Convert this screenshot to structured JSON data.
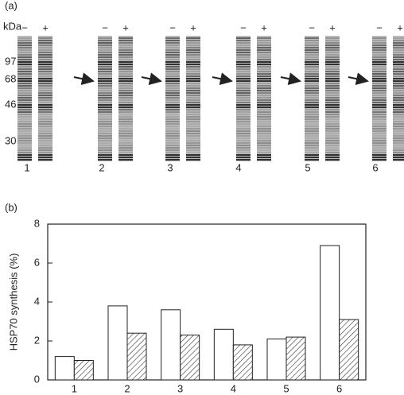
{
  "panel_labels": [
    "(a)",
    "(b)"
  ],
  "gel": {
    "unit": "kDa",
    "markers": [
      "97",
      "68",
      "46",
      "30"
    ],
    "signs": [
      "−",
      "+"
    ],
    "lane_labels": [
      "1",
      "2",
      "3",
      "4",
      "5",
      "6"
    ]
  },
  "chart_data": {
    "type": "bar",
    "ylabel": "HSP70 synthesis (%)",
    "categories": [
      "1",
      "2",
      "3",
      "4",
      "5",
      "6"
    ],
    "series": [
      {
        "color": "#ffffff",
        "pattern": "none",
        "values": [
          1.2,
          3.8,
          3.6,
          2.6,
          2.1,
          6.9
        ]
      },
      {
        "color": "#ffffff",
        "pattern": "hatch",
        "values": [
          1.0,
          2.4,
          2.3,
          1.8,
          2.2,
          3.1
        ]
      }
    ],
    "ylim": [
      0,
      8
    ],
    "yticks": [
      0,
      2,
      4,
      6,
      8
    ],
    "grid": false
  }
}
